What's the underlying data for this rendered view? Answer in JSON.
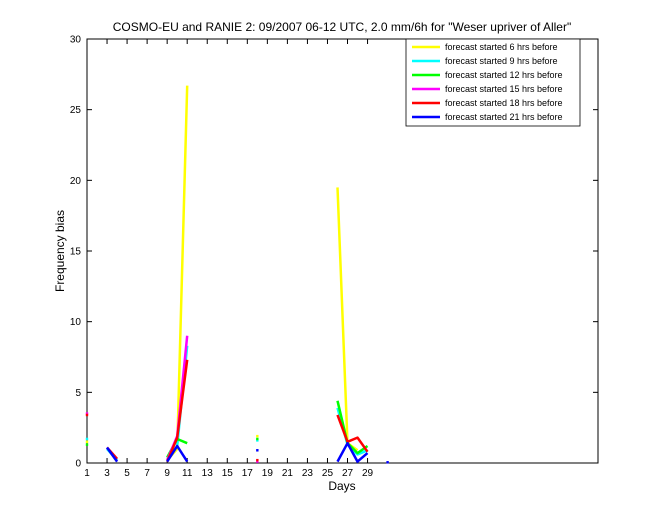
{
  "chart_data": {
    "type": "line",
    "title": "COSMO-EU and RANIE 2: 09/2007 06-12 UTC, 2.0 mm/6h for \"Weser upriver of Aller\"",
    "xlabel": "Days",
    "ylabel": "Frequency bias",
    "xlim": [
      1,
      52
    ],
    "ylim": [
      0,
      30
    ],
    "xticks": [
      1,
      3,
      5,
      7,
      9,
      11,
      13,
      15,
      17,
      19,
      21,
      23,
      25,
      27,
      29
    ],
    "yticks": [
      0,
      5,
      10,
      15,
      20,
      25,
      30
    ],
    "legend_position": "top-right",
    "series": [
      {
        "name": "forecast started 6 hrs before",
        "color": "#ffff00",
        "segments": [
          [
            [
              9,
              0.2
            ],
            [
              10,
              1.0
            ],
            [
              11,
              26.7
            ]
          ],
          [
            [
              26,
              19.5
            ],
            [
              27,
              1.4
            ],
            [
              28,
              0.9
            ]
          ]
        ],
        "points": [
          [
            1,
            1.5
          ],
          [
            18,
            1.9
          ]
        ]
      },
      {
        "name": "forecast started 9 hrs before",
        "color": "#00ffff",
        "segments": [
          [
            [
              3,
              1.0
            ],
            [
              4,
              0.2
            ]
          ],
          [
            [
              9,
              0.3
            ],
            [
              10,
              1.2
            ],
            [
              11,
              8.3
            ]
          ],
          [
            [
              26,
              3.9
            ],
            [
              27,
              1.3
            ],
            [
              28,
              0.6
            ],
            [
              29,
              0.9
            ]
          ]
        ],
        "points": [
          [
            1,
            1.7
          ],
          [
            18,
            1.6
          ]
        ]
      },
      {
        "name": "forecast started 12 hrs before",
        "color": "#00ff00",
        "segments": [
          [
            [
              9,
              0.4
            ],
            [
              10,
              1.7
            ],
            [
              11,
              1.4
            ]
          ],
          [
            [
              26,
              4.4
            ],
            [
              27,
              1.4
            ],
            [
              28,
              0.7
            ],
            [
              29,
              1.2
            ]
          ]
        ],
        "points": [
          [
            1,
            1.3
          ],
          [
            18,
            1.7
          ]
        ]
      },
      {
        "name": "forecast started 15 hrs before",
        "color": "#ff00ff",
        "segments": [
          [
            [
              9,
              0.2
            ],
            [
              10,
              1.9
            ],
            [
              11,
              9.0
            ]
          ]
        ],
        "points": [
          [
            1,
            3.5
          ],
          [
            18,
            0.1
          ]
        ]
      },
      {
        "name": "forecast started 18 hrs before",
        "color": "#ff0000",
        "segments": [
          [
            [
              3,
              1.1
            ],
            [
              4,
              0.3
            ]
          ],
          [
            [
              9,
              0.1
            ],
            [
              10,
              1.8
            ],
            [
              11,
              7.3
            ]
          ],
          [
            [
              26,
              3.4
            ],
            [
              27,
              1.5
            ],
            [
              28,
              1.8
            ],
            [
              29,
              0.8
            ]
          ]
        ],
        "points": [
          [
            1,
            3.4
          ],
          [
            18,
            0.2
          ]
        ]
      },
      {
        "name": "forecast started 21 hrs before",
        "color": "#0000ff",
        "segments": [
          [
            [
              3,
              1.1
            ],
            [
              4,
              0.1
            ]
          ],
          [
            [
              9,
              0.1
            ],
            [
              10,
              1.2
            ],
            [
              11,
              0.1
            ]
          ],
          [
            [
              26,
              0.1
            ],
            [
              27,
              1.4
            ],
            [
              28,
              0.1
            ],
            [
              29,
              0.7
            ]
          ]
        ],
        "points": [
          [
            18,
            0.9
          ],
          [
            31,
            0.05
          ]
        ]
      }
    ]
  }
}
